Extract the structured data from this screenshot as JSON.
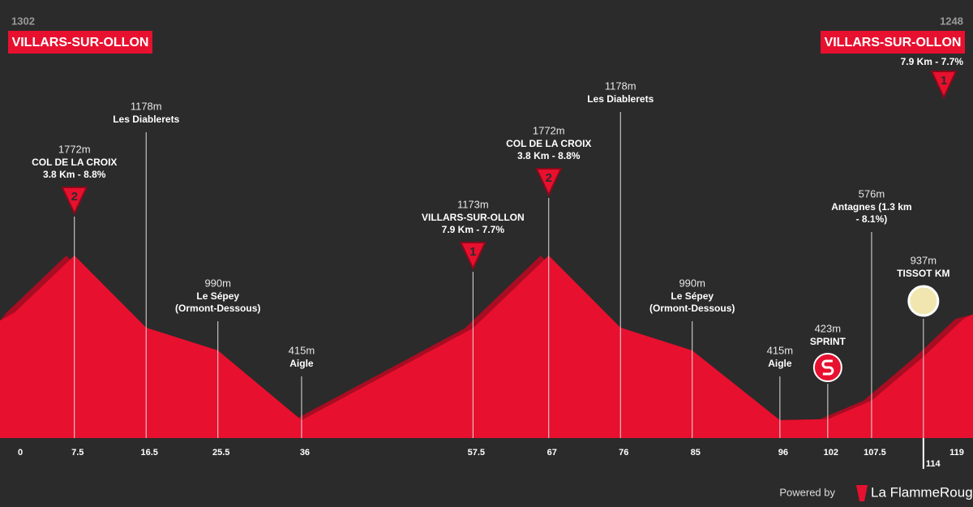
{
  "chart_data": {
    "type": "profile",
    "x": [
      0,
      7.5,
      16.5,
      25.5,
      36,
      57.5,
      67,
      76,
      85,
      96,
      102,
      107.5,
      114,
      119
    ],
    "values": [
      1302,
      1772,
      1178,
      990,
      415,
      1173,
      1772,
      1178,
      990,
      415,
      423,
      576,
      937,
      1248
    ],
    "value_labels": [
      "1302",
      "1772m",
      "1178m",
      "990m",
      "415m",
      "1173m",
      "1772m",
      "1178m",
      "990m",
      "415m",
      "423m",
      "576m",
      "937m",
      "1248"
    ],
    "names": [
      "VILLARS-SUR-OLLON",
      "COL DE LA CROIX",
      "Les Diablerets",
      [
        "Le Sépey",
        "(Ormont-Dessous)"
      ],
      "Aigle",
      "VILLARS-SUR-OLLON",
      "COL DE LA CROIX",
      "Les Diablerets",
      [
        "Le Sépey",
        "(Ormont-Dessous)"
      ],
      "Aigle",
      "SPRINT",
      [
        "Antagnes (1.3 km",
        "- 8.1%)"
      ],
      "TISSOT KM",
      "VILLARS-SUR-OLLON"
    ],
    "details": [
      null,
      "3.8 Km - 8.8%",
      null,
      null,
      null,
      "7.9 Km - 7.7%",
      "3.8 Km - 8.8%",
      null,
      null,
      null,
      null,
      null,
      null,
      "7.9 Km - 7.7%"
    ],
    "climb_categories": [
      null,
      2,
      null,
      null,
      null,
      1,
      2,
      null,
      null,
      null,
      null,
      null,
      null,
      1
    ],
    "color": "#e8102f"
  },
  "footer": {
    "powered_by": "Powered by",
    "brand": "La FlammeRouge"
  }
}
